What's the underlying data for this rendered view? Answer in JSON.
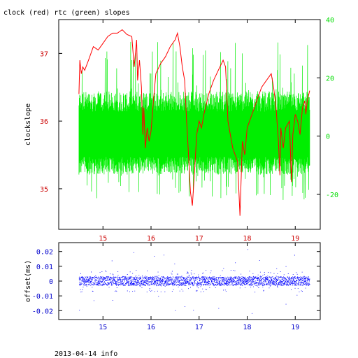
{
  "chart_data": [
    {
      "type": "line",
      "title": "clock (red) rtc (green) slopes",
      "xlabel": "",
      "ylabel": "clockslope",
      "xlim": [
        14.08,
        19.52
      ],
      "x_ticks": [
        "15",
        "16",
        "17",
        "18",
        "19"
      ],
      "y_left": {
        "lim": [
          34.4,
          37.5
        ],
        "ticks": [
          "35",
          "36",
          "37"
        ],
        "color": "#cc0000"
      },
      "y_right": {
        "lim": [
          -32,
          40
        ],
        "ticks": [
          "-20",
          "0",
          "20",
          "40"
        ],
        "color": "#00dd00"
      },
      "series": [
        {
          "axis": "left",
          "color": "#ff0000",
          "points": [
            [
              14.5,
              36.4
            ],
            [
              14.52,
              36.9
            ],
            [
              14.55,
              36.7
            ],
            [
              14.58,
              36.8
            ],
            [
              14.62,
              36.75
            ],
            [
              14.7,
              36.9
            ],
            [
              14.8,
              37.1
            ],
            [
              14.9,
              37.05
            ],
            [
              15.0,
              37.15
            ],
            [
              15.1,
              37.25
            ],
            [
              15.2,
              37.3
            ],
            [
              15.3,
              37.3
            ],
            [
              15.4,
              37.35
            ],
            [
              15.5,
              37.28
            ],
            [
              15.6,
              37.25
            ],
            [
              15.65,
              36.8
            ],
            [
              15.7,
              37.2
            ],
            [
              15.72,
              36.6
            ],
            [
              15.76,
              36.9
            ],
            [
              15.8,
              36.5
            ],
            [
              15.83,
              35.8
            ],
            [
              15.85,
              36.2
            ],
            [
              15.88,
              35.6
            ],
            [
              15.92,
              35.9
            ],
            [
              15.96,
              35.7
            ],
            [
              16.0,
              35.85
            ],
            [
              16.05,
              36.3
            ],
            [
              16.1,
              36.7
            ],
            [
              16.2,
              36.85
            ],
            [
              16.3,
              36.95
            ],
            [
              16.4,
              37.1
            ],
            [
              16.5,
              37.2
            ],
            [
              16.55,
              37.3
            ],
            [
              16.6,
              37.1
            ],
            [
              16.65,
              36.8
            ],
            [
              16.7,
              36.6
            ],
            [
              16.74,
              36.0
            ],
            [
              16.78,
              35.5
            ],
            [
              16.82,
              34.95
            ],
            [
              16.86,
              34.75
            ],
            [
              16.9,
              35.2
            ],
            [
              16.95,
              35.8
            ],
            [
              17.0,
              36.0
            ],
            [
              17.05,
              35.9
            ],
            [
              17.1,
              36.1
            ],
            [
              17.2,
              36.4
            ],
            [
              17.3,
              36.6
            ],
            [
              17.4,
              36.75
            ],
            [
              17.5,
              36.9
            ],
            [
              17.55,
              36.8
            ],
            [
              17.6,
              36.0
            ],
            [
              17.65,
              35.8
            ],
            [
              17.7,
              35.6
            ],
            [
              17.8,
              35.4
            ],
            [
              17.85,
              34.6
            ],
            [
              17.9,
              35.7
            ],
            [
              17.95,
              35.5
            ],
            [
              18.0,
              35.9
            ],
            [
              18.1,
              36.1
            ],
            [
              18.2,
              36.3
            ],
            [
              18.3,
              36.5
            ],
            [
              18.4,
              36.6
            ],
            [
              18.5,
              36.7
            ],
            [
              18.55,
              36.5
            ],
            [
              18.6,
              36.2
            ],
            [
              18.65,
              35.7
            ],
            [
              18.68,
              35.2
            ],
            [
              18.7,
              35.9
            ],
            [
              18.75,
              35.6
            ],
            [
              18.8,
              35.9
            ],
            [
              18.88,
              36.0
            ],
            [
              18.92,
              35.1
            ],
            [
              18.95,
              35.8
            ],
            [
              19.0,
              36.1
            ],
            [
              19.05,
              36.0
            ],
            [
              19.1,
              35.8
            ],
            [
              19.15,
              36.2
            ],
            [
              19.2,
              36.3
            ],
            [
              19.22,
              36.1
            ],
            [
              19.25,
              36.3
            ],
            [
              19.3,
              36.45
            ]
          ]
        },
        {
          "axis": "right",
          "color": "#00ee00",
          "x_range": [
            14.5,
            19.3
          ],
          "band_low": -12,
          "band_high": 14,
          "peak_low": -22,
          "peak_high": 33
        }
      ]
    },
    {
      "type": "scatter",
      "xlabel": "",
      "ylabel": "offset(ms)",
      "xlim": [
        14.08,
        19.52
      ],
      "ylim": [
        -0.026,
        0.026
      ],
      "x_ticks": [
        "15",
        "16",
        "17",
        "18",
        "19"
      ],
      "y_ticks": [
        "0.02",
        "0.01",
        "0",
        "-0.01",
        "-0.02"
      ],
      "color": "#0000ff",
      "x_range": [
        14.5,
        19.3
      ],
      "typical_spread": 0.003,
      "max_spread": 0.022
    }
  ],
  "footer": "2013-04-14 info"
}
